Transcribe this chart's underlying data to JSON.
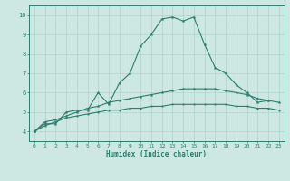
{
  "xlabel": "Humidex (Indice chaleur)",
  "x": [
    0,
    1,
    2,
    3,
    4,
    5,
    6,
    7,
    8,
    9,
    10,
    11,
    12,
    13,
    14,
    15,
    16,
    17,
    18,
    19,
    20,
    21,
    22,
    23
  ],
  "line1": [
    4.0,
    4.4,
    4.4,
    5.0,
    5.1,
    5.1,
    6.0,
    5.4,
    6.5,
    7.0,
    8.4,
    9.0,
    9.8,
    9.9,
    9.7,
    9.9,
    8.5,
    7.3,
    7.0,
    6.4,
    6.0,
    5.5,
    5.6,
    null
  ],
  "line2": [
    4.0,
    4.5,
    4.6,
    4.8,
    5.0,
    5.2,
    5.3,
    5.5,
    5.6,
    5.7,
    5.8,
    5.9,
    6.0,
    6.1,
    6.2,
    6.2,
    6.2,
    6.2,
    6.1,
    6.0,
    5.9,
    5.7,
    5.6,
    5.5
  ],
  "line3": [
    4.0,
    4.3,
    4.5,
    4.7,
    4.8,
    4.9,
    5.0,
    5.1,
    5.1,
    5.2,
    5.2,
    5.3,
    5.3,
    5.4,
    5.4,
    5.4,
    5.4,
    5.4,
    5.4,
    5.3,
    5.3,
    5.2,
    5.2,
    5.1
  ],
  "color": "#2d7d6e",
  "bg_color": "#cde8e2",
  "grid_color": "#aaccC6",
  "ylim": [
    3.5,
    10.5
  ],
  "xlim": [
    -0.5,
    23.5
  ]
}
